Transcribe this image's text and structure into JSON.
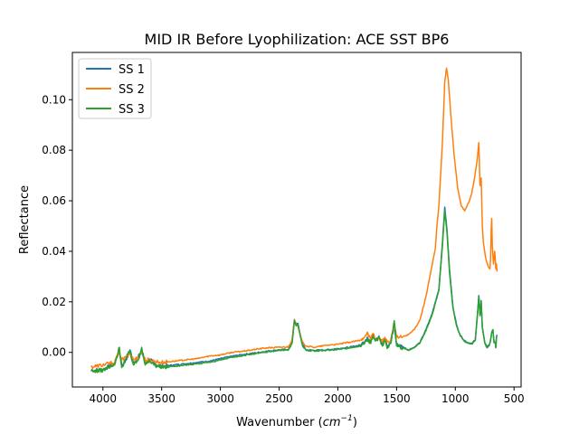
{
  "chart_data": {
    "type": "line",
    "title": "MID IR Before Lyophilization: ACE SST BP6",
    "xlabel_prefix": "Wavenumber (",
    "xlabel_math": "cm",
    "xlabel_sup": "−1",
    "xlabel_suffix": ")",
    "ylabel": "Reflectance",
    "xlim": [
      4260,
      440
    ],
    "ylim": [
      -0.0137,
      0.1187
    ],
    "x_inverted": true,
    "xticks": [
      4000,
      3500,
      3000,
      2500,
      2000,
      1500,
      1000,
      500
    ],
    "xtick_labels": [
      "4000",
      "3500",
      "3000",
      "2500",
      "2000",
      "1500",
      "1000",
      "500"
    ],
    "yticks": [
      0.0,
      0.02,
      0.04,
      0.06,
      0.08,
      0.1
    ],
    "ytick_labels": [
      "0.00",
      "0.02",
      "0.04",
      "0.06",
      "0.08",
      "0.10"
    ],
    "grid": false,
    "legend_position": "upper-left",
    "series": [
      {
        "name": "SS 1",
        "color": "#1f77b4",
        "points": [
          [
            4100,
            -0.0072
          ],
          [
            4000,
            -0.0068
          ],
          [
            3900,
            -0.0045
          ],
          [
            3860,
            0.001
          ],
          [
            3840,
            -0.005
          ],
          [
            3800,
            -0.003
          ],
          [
            3770,
            0.001
          ],
          [
            3740,
            -0.004
          ],
          [
            3700,
            -0.002
          ],
          [
            3670,
            0.001
          ],
          [
            3640,
            -0.004
          ],
          [
            3600,
            -0.003
          ],
          [
            3560,
            -0.0045
          ],
          [
            3500,
            -0.0055
          ],
          [
            3400,
            -0.005
          ],
          [
            3300,
            -0.0045
          ],
          [
            3200,
            -0.004
          ],
          [
            3100,
            -0.0035
          ],
          [
            3000,
            -0.0025
          ],
          [
            2900,
            -0.0015
          ],
          [
            2800,
            -0.0008
          ],
          [
            2700,
            -0.0002
          ],
          [
            2600,
            0.0005
          ],
          [
            2500,
            0.001
          ],
          [
            2420,
            0.0012
          ],
          [
            2390,
            0.004
          ],
          [
            2370,
            0.013
          ],
          [
            2355,
            0.011
          ],
          [
            2340,
            0.0115
          ],
          [
            2320,
            0.007
          ],
          [
            2300,
            0.003
          ],
          [
            2270,
            0.001
          ],
          [
            2200,
            0.0008
          ],
          [
            2100,
            0.001
          ],
          [
            2000,
            0.0015
          ],
          [
            1900,
            0.002
          ],
          [
            1800,
            0.003
          ],
          [
            1750,
            0.006
          ],
          [
            1720,
            0.004
          ],
          [
            1700,
            0.007
          ],
          [
            1680,
            0.005
          ],
          [
            1650,
            0.0065
          ],
          [
            1620,
            0.003
          ],
          [
            1600,
            0.0055
          ],
          [
            1580,
            0.002
          ],
          [
            1550,
            0.004
          ],
          [
            1520,
            0.0105
          ],
          [
            1500,
            0.003
          ],
          [
            1460,
            0.0025
          ],
          [
            1400,
            0.001
          ],
          [
            1350,
            0.002
          ],
          [
            1300,
            0.004
          ],
          [
            1250,
            0.009
          ],
          [
            1200,
            0.015
          ],
          [
            1170,
            0.02
          ],
          [
            1140,
            0.025
          ],
          [
            1110,
            0.043
          ],
          [
            1090,
            0.0575
          ],
          [
            1070,
            0.048
          ],
          [
            1050,
            0.033
          ],
          [
            1020,
            0.018
          ],
          [
            990,
            0.011
          ],
          [
            960,
            0.007
          ],
          [
            930,
            0.005
          ],
          [
            900,
            0.004
          ],
          [
            860,
            0.0035
          ],
          [
            830,
            0.005
          ],
          [
            810,
            0.016
          ],
          [
            800,
            0.0225
          ],
          [
            790,
            0.015
          ],
          [
            780,
            0.0205
          ],
          [
            770,
            0.01
          ],
          [
            750,
            0.004
          ],
          [
            730,
            0.002
          ],
          [
            710,
            0.003
          ],
          [
            700,
            0.005
          ],
          [
            690,
            0.008
          ],
          [
            680,
            0.009
          ],
          [
            670,
            0.004
          ],
          [
            660,
            0.004
          ],
          [
            655,
            0.002
          ],
          [
            650,
            0.006
          ],
          [
            645,
            0.007
          ]
        ]
      },
      {
        "name": "SS 2",
        "color": "#ff7f0e",
        "points": [
          [
            4100,
            -0.0058
          ],
          [
            4000,
            -0.005
          ],
          [
            3900,
            -0.004
          ],
          [
            3860,
            0.0005
          ],
          [
            3840,
            -0.003
          ],
          [
            3800,
            -0.002
          ],
          [
            3770,
            0.0
          ],
          [
            3740,
            -0.003
          ],
          [
            3700,
            -0.002
          ],
          [
            3670,
            0.0
          ],
          [
            3640,
            -0.003
          ],
          [
            3600,
            -0.003
          ],
          [
            3560,
            -0.0035
          ],
          [
            3500,
            -0.004
          ],
          [
            3400,
            -0.0035
          ],
          [
            3300,
            -0.003
          ],
          [
            3200,
            -0.0025
          ],
          [
            3100,
            -0.0015
          ],
          [
            3000,
            -0.001
          ],
          [
            2900,
            0.0
          ],
          [
            2800,
            0.0005
          ],
          [
            2700,
            0.0012
          ],
          [
            2600,
            0.0018
          ],
          [
            2500,
            0.002
          ],
          [
            2420,
            0.0022
          ],
          [
            2390,
            0.005
          ],
          [
            2370,
            0.0128
          ],
          [
            2355,
            0.011
          ],
          [
            2340,
            0.0105
          ],
          [
            2320,
            0.007
          ],
          [
            2300,
            0.004
          ],
          [
            2270,
            0.0025
          ],
          [
            2200,
            0.002
          ],
          [
            2100,
            0.0028
          ],
          [
            2000,
            0.0032
          ],
          [
            1900,
            0.004
          ],
          [
            1800,
            0.0048
          ],
          [
            1750,
            0.008
          ],
          [
            1720,
            0.005
          ],
          [
            1700,
            0.0075
          ],
          [
            1680,
            0.005
          ],
          [
            1650,
            0.006
          ],
          [
            1620,
            0.004
          ],
          [
            1600,
            0.006
          ],
          [
            1580,
            0.004
          ],
          [
            1550,
            0.005
          ],
          [
            1520,
            0.0105
          ],
          [
            1500,
            0.006
          ],
          [
            1460,
            0.006
          ],
          [
            1400,
            0.007
          ],
          [
            1350,
            0.009
          ],
          [
            1300,
            0.013
          ],
          [
            1250,
            0.022
          ],
          [
            1200,
            0.034
          ],
          [
            1170,
            0.041
          ],
          [
            1160,
            0.048
          ],
          [
            1140,
            0.058
          ],
          [
            1110,
            0.083
          ],
          [
            1090,
            0.107
          ],
          [
            1075,
            0.1125
          ],
          [
            1060,
            0.108
          ],
          [
            1040,
            0.095
          ],
          [
            1010,
            0.078
          ],
          [
            980,
            0.065
          ],
          [
            950,
            0.058
          ],
          [
            920,
            0.056
          ],
          [
            900,
            0.058
          ],
          [
            880,
            0.06
          ],
          [
            860,
            0.063
          ],
          [
            840,
            0.068
          ],
          [
            820,
            0.074
          ],
          [
            810,
            0.078
          ],
          [
            800,
            0.083
          ],
          [
            790,
            0.066
          ],
          [
            780,
            0.069
          ],
          [
            770,
            0.05
          ],
          [
            760,
            0.043
          ],
          [
            740,
            0.037
          ],
          [
            720,
            0.034
          ],
          [
            705,
            0.033
          ],
          [
            700,
            0.037
          ],
          [
            695,
            0.048
          ],
          [
            690,
            0.053
          ],
          [
            685,
            0.042
          ],
          [
            675,
            0.035
          ],
          [
            665,
            0.04
          ],
          [
            660,
            0.037
          ],
          [
            655,
            0.033
          ],
          [
            650,
            0.035
          ],
          [
            645,
            0.032
          ]
        ]
      },
      {
        "name": "SS 3",
        "color": "#2ca02c",
        "points": [
          [
            4100,
            -0.0075
          ],
          [
            4000,
            -0.007
          ],
          [
            3900,
            -0.005
          ],
          [
            3860,
            0.002
          ],
          [
            3840,
            -0.006
          ],
          [
            3800,
            -0.002
          ],
          [
            3770,
            0.0005
          ],
          [
            3740,
            -0.005
          ],
          [
            3700,
            -0.003
          ],
          [
            3670,
            0.002
          ],
          [
            3640,
            -0.005
          ],
          [
            3600,
            -0.0035
          ],
          [
            3560,
            -0.005
          ],
          [
            3500,
            -0.006
          ],
          [
            3400,
            -0.0055
          ],
          [
            3300,
            -0.005
          ],
          [
            3200,
            -0.0045
          ],
          [
            3100,
            -0.004
          ],
          [
            3000,
            -0.003
          ],
          [
            2900,
            -0.002
          ],
          [
            2800,
            -0.0012
          ],
          [
            2700,
            -0.0005
          ],
          [
            2600,
            0.0002
          ],
          [
            2500,
            0.0008
          ],
          [
            2420,
            0.001
          ],
          [
            2390,
            0.0035
          ],
          [
            2370,
            0.0125
          ],
          [
            2355,
            0.0105
          ],
          [
            2340,
            0.011
          ],
          [
            2320,
            0.0065
          ],
          [
            2300,
            0.0025
          ],
          [
            2270,
            0.0008
          ],
          [
            2200,
            0.0005
          ],
          [
            2100,
            0.0008
          ],
          [
            2000,
            0.0012
          ],
          [
            1900,
            0.0018
          ],
          [
            1800,
            0.0025
          ],
          [
            1750,
            0.0055
          ],
          [
            1720,
            0.0035
          ],
          [
            1700,
            0.0065
          ],
          [
            1680,
            0.0045
          ],
          [
            1650,
            0.006
          ],
          [
            1620,
            0.0025
          ],
          [
            1600,
            0.005
          ],
          [
            1580,
            0.0015
          ],
          [
            1550,
            0.0035
          ],
          [
            1520,
            0.0125
          ],
          [
            1500,
            0.0025
          ],
          [
            1460,
            0.002
          ],
          [
            1400,
            0.0008
          ],
          [
            1350,
            0.0018
          ],
          [
            1300,
            0.0038
          ],
          [
            1250,
            0.0085
          ],
          [
            1200,
            0.0145
          ],
          [
            1170,
            0.0195
          ],
          [
            1140,
            0.0245
          ],
          [
            1110,
            0.042
          ],
          [
            1090,
            0.056
          ],
          [
            1070,
            0.047
          ],
          [
            1050,
            0.032
          ],
          [
            1020,
            0.0175
          ],
          [
            990,
            0.0105
          ],
          [
            960,
            0.0068
          ],
          [
            930,
            0.0048
          ],
          [
            900,
            0.0038
          ],
          [
            860,
            0.0033
          ],
          [
            830,
            0.0048
          ],
          [
            810,
            0.0155
          ],
          [
            800,
            0.022
          ],
          [
            790,
            0.0145
          ],
          [
            780,
            0.02
          ],
          [
            770,
            0.0098
          ],
          [
            750,
            0.0038
          ],
          [
            730,
            0.0018
          ],
          [
            710,
            0.0028
          ],
          [
            700,
            0.0048
          ],
          [
            690,
            0.0078
          ],
          [
            680,
            0.0088
          ],
          [
            670,
            0.0038
          ],
          [
            660,
            0.0038
          ],
          [
            655,
            0.0018
          ],
          [
            650,
            0.0058
          ],
          [
            645,
            0.0062
          ]
        ]
      }
    ]
  }
}
